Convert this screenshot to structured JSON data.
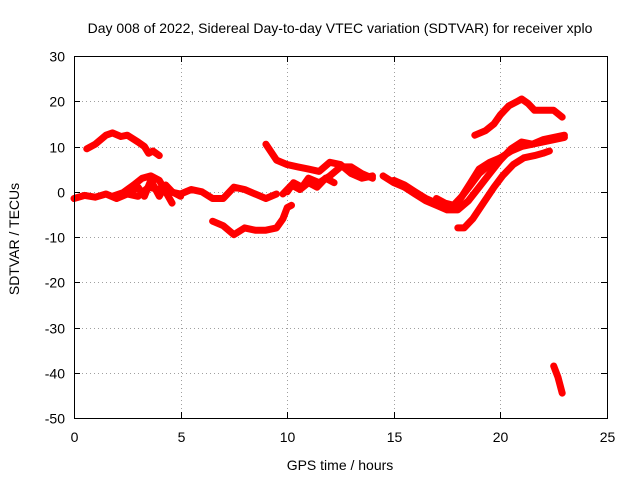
{
  "chart_data": {
    "type": "line",
    "title": "Day 008 of 2022, Sidereal Day-to-day VTEC variation (SDTVAR) for receiver xplo",
    "xlabel": "GPS time / hours",
    "ylabel": "SDTVAR / TECUs",
    "xlim": [
      0,
      25
    ],
    "ylim": [
      -50,
      30
    ],
    "xticks": [
      0,
      5,
      10,
      15,
      20,
      25
    ],
    "yticks": [
      -50,
      -40,
      -30,
      -20,
      -10,
      0,
      10,
      20,
      30
    ],
    "grid": true,
    "legend": "none",
    "color": "#ff0000",
    "series": [
      {
        "name": "track-a",
        "points": [
          [
            0.6,
            9.5
          ],
          [
            1.0,
            10.5
          ],
          [
            1.5,
            12.5
          ],
          [
            1.8,
            13.0
          ],
          [
            2.2,
            12.2
          ],
          [
            2.5,
            12.5
          ],
          [
            3.0,
            11.0
          ],
          [
            3.3,
            10.0
          ],
          [
            3.5,
            8.5
          ],
          [
            3.7,
            9.0
          ],
          [
            4.0,
            8.0
          ]
        ]
      },
      {
        "name": "track-b",
        "points": [
          [
            0.0,
            -1.5
          ],
          [
            0.5,
            -0.8
          ],
          [
            1.0,
            -1.2
          ],
          [
            1.5,
            -0.5
          ],
          [
            2.0,
            -1.5
          ],
          [
            2.5,
            -0.5
          ],
          [
            3.0,
            -1.0
          ],
          [
            3.5,
            1.0
          ],
          [
            4.0,
            0.5
          ],
          [
            4.5,
            0.0
          ],
          [
            5.0,
            -0.5
          ],
          [
            5.5,
            0.5
          ],
          [
            6.0,
            0.0
          ],
          [
            6.5,
            -1.5
          ],
          [
            7.0,
            -1.5
          ],
          [
            7.5,
            1.0
          ],
          [
            8.0,
            0.5
          ],
          [
            8.5,
            -0.5
          ],
          [
            9.0,
            -1.5
          ],
          [
            9.5,
            -0.5
          ]
        ]
      },
      {
        "name": "track-c",
        "points": [
          [
            1.8,
            -1.0
          ],
          [
            2.3,
            -0.2
          ],
          [
            2.8,
            1.5
          ],
          [
            3.2,
            3.0
          ],
          [
            3.6,
            3.5
          ],
          [
            4.0,
            2.5
          ],
          [
            4.3,
            0.0
          ],
          [
            4.6,
            -2.5
          ]
        ]
      },
      {
        "name": "track-d",
        "points": [
          [
            2.5,
            -0.5
          ],
          [
            3.0,
            1.0
          ],
          [
            3.3,
            -1.0
          ],
          [
            3.6,
            2.5
          ],
          [
            4.0,
            -1.0
          ],
          [
            4.3,
            1.5
          ],
          [
            4.6,
            0.0
          ],
          [
            5.0,
            -1.0
          ]
        ]
      },
      {
        "name": "track-e",
        "points": [
          [
            6.5,
            -6.5
          ],
          [
            7.0,
            -7.5
          ],
          [
            7.5,
            -9.5
          ],
          [
            8.0,
            -8.0
          ],
          [
            8.5,
            -8.5
          ],
          [
            9.0,
            -8.5
          ],
          [
            9.5,
            -8.0
          ],
          [
            9.8,
            -6.0
          ],
          [
            10.0,
            -3.5
          ],
          [
            10.2,
            -3.0
          ]
        ]
      },
      {
        "name": "track-f",
        "points": [
          [
            9.0,
            10.5
          ],
          [
            9.5,
            7.0
          ],
          [
            10.0,
            6.0
          ],
          [
            10.5,
            5.5
          ],
          [
            11.0,
            5.0
          ],
          [
            11.5,
            4.5
          ],
          [
            12.0,
            6.5
          ],
          [
            12.5,
            6.0
          ],
          [
            13.0,
            4.0
          ],
          [
            13.5,
            3.0
          ],
          [
            14.0,
            3.5
          ]
        ]
      },
      {
        "name": "track-g",
        "points": [
          [
            10.0,
            0.0
          ],
          [
            10.3,
            2.0
          ],
          [
            10.7,
            1.0
          ],
          [
            11.0,
            3.0
          ],
          [
            11.5,
            2.0
          ],
          [
            12.0,
            3.5
          ],
          [
            12.5,
            5.5
          ],
          [
            13.0,
            5.5
          ],
          [
            13.5,
            4.0
          ],
          [
            14.0,
            3.0
          ]
        ]
      },
      {
        "name": "track-h",
        "points": [
          [
            9.8,
            -0.5
          ],
          [
            10.2,
            1.5
          ],
          [
            10.6,
            0.5
          ],
          [
            11.0,
            2.0
          ],
          [
            11.4,
            1.0
          ],
          [
            11.8,
            3.0
          ],
          [
            12.2,
            2.0
          ]
        ]
      },
      {
        "name": "track-i",
        "points": [
          [
            14.5,
            3.5
          ],
          [
            15.0,
            2.0
          ],
          [
            15.5,
            1.0
          ],
          [
            16.0,
            -0.5
          ],
          [
            16.5,
            -2.0
          ],
          [
            17.0,
            -3.0
          ],
          [
            17.5,
            -4.0
          ],
          [
            18.0,
            -4.0
          ],
          [
            18.5,
            -2.0
          ],
          [
            19.0,
            1.0
          ],
          [
            19.5,
            4.0
          ],
          [
            20.0,
            7.0
          ],
          [
            20.5,
            9.5
          ],
          [
            21.0,
            11.0
          ],
          [
            21.5,
            10.5
          ],
          [
            22.0,
            11.0
          ],
          [
            22.5,
            11.5
          ],
          [
            23.0,
            12.0
          ]
        ]
      },
      {
        "name": "track-j",
        "points": [
          [
            15.0,
            2.5
          ],
          [
            15.5,
            1.5
          ],
          [
            16.0,
            0.0
          ],
          [
            16.5,
            -1.5
          ],
          [
            17.0,
            -2.5
          ],
          [
            17.5,
            -3.5
          ],
          [
            17.8,
            -3.8
          ],
          [
            18.2,
            -1.0
          ],
          [
            18.6,
            2.0
          ],
          [
            19.0,
            5.0
          ],
          [
            19.5,
            6.5
          ],
          [
            20.0,
            7.5
          ],
          [
            20.5,
            9.0
          ],
          [
            21.0,
            10.0
          ],
          [
            21.5,
            10.5
          ],
          [
            22.0,
            11.5
          ],
          [
            22.5,
            12.0
          ],
          [
            23.0,
            12.5
          ]
        ]
      },
      {
        "name": "track-k",
        "points": [
          [
            18.0,
            -8.0
          ],
          [
            18.3,
            -8.0
          ],
          [
            18.7,
            -6.0
          ],
          [
            19.2,
            -2.5
          ],
          [
            19.7,
            1.0
          ],
          [
            20.1,
            3.5
          ],
          [
            20.6,
            6.0
          ],
          [
            21.1,
            7.5
          ],
          [
            21.6,
            8.0
          ],
          [
            22.0,
            8.5
          ],
          [
            22.3,
            9.0
          ]
        ]
      },
      {
        "name": "track-l",
        "points": [
          [
            17.0,
            -1.5
          ],
          [
            17.4,
            -2.5
          ],
          [
            17.8,
            -3.0
          ],
          [
            18.2,
            -1.0
          ],
          [
            18.6,
            1.5
          ],
          [
            19.0,
            4.0
          ],
          [
            19.5,
            6.0
          ],
          [
            20.0,
            7.5
          ]
        ]
      },
      {
        "name": "track-m",
        "points": [
          [
            18.8,
            12.5
          ],
          [
            19.3,
            13.5
          ],
          [
            19.7,
            15.0
          ],
          [
            20.0,
            17.0
          ],
          [
            20.4,
            19.0
          ],
          [
            20.8,
            20.0
          ],
          [
            21.0,
            20.5
          ],
          [
            21.3,
            19.5
          ],
          [
            21.6,
            18.0
          ],
          [
            22.0,
            18.0
          ],
          [
            22.5,
            18.0
          ],
          [
            22.9,
            16.5
          ]
        ]
      },
      {
        "name": "track-n",
        "points": [
          [
            22.5,
            -38.5
          ],
          [
            22.7,
            -41.0
          ],
          [
            22.9,
            -44.5
          ]
        ]
      }
    ]
  }
}
